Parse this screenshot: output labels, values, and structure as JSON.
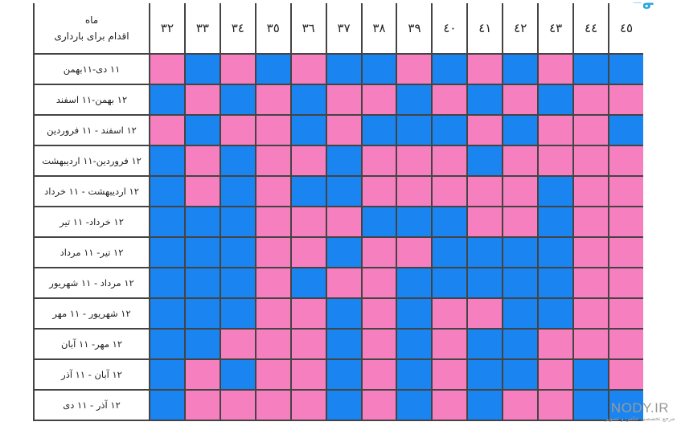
{
  "logo": {
    "text": "ᓂᓂ"
  },
  "table": {
    "corner_line1": "ماه",
    "corner_line2": "اقدام برای بارداری",
    "ages": [
      "۳۲",
      "۳۳",
      "۳٤",
      "۳٥",
      "۳٦",
      "۳۷",
      "۳۸",
      "۳۹",
      "٤٠",
      "٤١",
      "٤٢",
      "٤۳",
      "٤٤",
      "٤٥"
    ],
    "months": [
      "۱۱ دی-۱۱بهمن",
      "۱۲ بهمن-۱۱ اسفند",
      "۱۲ اسفند - ۱۱ فروردین",
      "۱۲ فروردین-۱۱ اردیبهشت",
      "۱۲ اردیبهشت - ۱۱ خرداد",
      "۱۲ خرداد- ۱۱ تیر",
      "۱۲ تیر- ۱۱ مرداد",
      "۱۲ مرداد - ۱۱ شهریور",
      "۱۲ شهریور - ۱۱ مهر",
      "۱۲ مهر- ۱۱ آبان",
      "۱۲ آبان - ۱۱ آذر",
      "۱۲ آذر - ۱۱ دی"
    ],
    "colors": {
      "pink": "#f67fbf",
      "blue": "#1a84f0"
    },
    "grid": [
      [
        "p",
        "b",
        "p",
        "b",
        "p",
        "b",
        "b",
        "p",
        "b",
        "p",
        "b",
        "p",
        "b",
        "b"
      ],
      [
        "b",
        "p",
        "b",
        "p",
        "b",
        "p",
        "p",
        "b",
        "p",
        "b",
        "p",
        "b",
        "p",
        "p"
      ],
      [
        "p",
        "b",
        "p",
        "p",
        "b",
        "p",
        "b",
        "b",
        "b",
        "p",
        "b",
        "p",
        "p",
        "b"
      ],
      [
        "b",
        "p",
        "b",
        "p",
        "p",
        "b",
        "p",
        "p",
        "p",
        "b",
        "p",
        "p",
        "p",
        "p"
      ],
      [
        "b",
        "p",
        "b",
        "p",
        "b",
        "b",
        "p",
        "p",
        "p",
        "p",
        "p",
        "b",
        "p",
        "p"
      ],
      [
        "b",
        "b",
        "b",
        "p",
        "p",
        "p",
        "b",
        "b",
        "b",
        "p",
        "p",
        "b",
        "p",
        "p"
      ],
      [
        "b",
        "b",
        "b",
        "p",
        "p",
        "b",
        "p",
        "p",
        "b",
        "b",
        "b",
        "b",
        "p",
        "p"
      ],
      [
        "b",
        "b",
        "b",
        "p",
        "b",
        "p",
        "p",
        "b",
        "b",
        "b",
        "b",
        "b",
        "p",
        "p"
      ],
      [
        "b",
        "b",
        "b",
        "p",
        "p",
        "b",
        "p",
        "b",
        "p",
        "p",
        "b",
        "b",
        "p",
        "p"
      ],
      [
        "b",
        "b",
        "p",
        "p",
        "p",
        "b",
        "p",
        "b",
        "p",
        "b",
        "b",
        "p",
        "p",
        "p"
      ],
      [
        "b",
        "p",
        "b",
        "p",
        "p",
        "b",
        "p",
        "b",
        "p",
        "b",
        "b",
        "p",
        "b",
        "p"
      ],
      [
        "b",
        "p",
        "p",
        "p",
        "p",
        "b",
        "p",
        "b",
        "p",
        "b",
        "p",
        "p",
        "b",
        "b"
      ]
    ]
  },
  "watermark": {
    "site": "NODY.IR",
    "tagline": "مرجع تخصصی عکس و تصویر"
  }
}
